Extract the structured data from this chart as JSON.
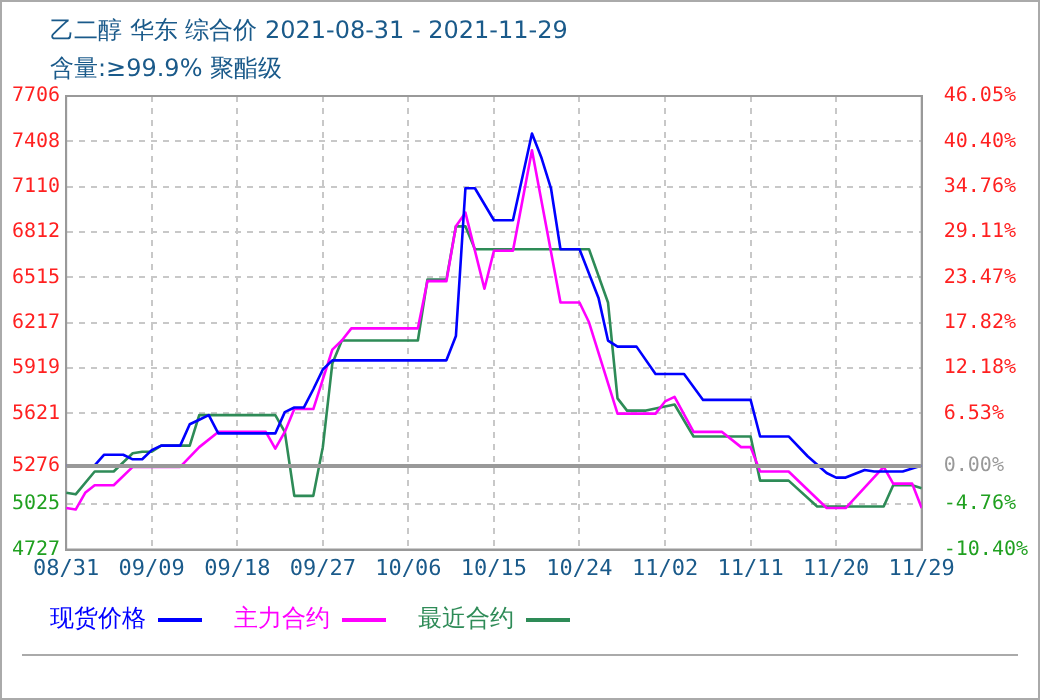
{
  "chart_data": {
    "type": "line",
    "title": "乙二醇 华东 综合价 2021-08-31 - 2021-11-29",
    "subtitle": "含量:≥99.9% 聚酯级",
    "xlim": [
      "2021-08-31",
      "2021-11-29"
    ],
    "xticks": [
      {
        "value": "2021-08-31",
        "label": "08/31"
      },
      {
        "value": "2021-09-09",
        "label": "09/09"
      },
      {
        "value": "2021-09-18",
        "label": "09/18"
      },
      {
        "value": "2021-09-27",
        "label": "09/27"
      },
      {
        "value": "2021-10-06",
        "label": "10/06"
      },
      {
        "value": "2021-10-15",
        "label": "10/15"
      },
      {
        "value": "2021-10-24",
        "label": "10/24"
      },
      {
        "value": "2021-11-02",
        "label": "11/02"
      },
      {
        "value": "2021-11-11",
        "label": "11/11"
      },
      {
        "value": "2021-11-20",
        "label": "11/20"
      },
      {
        "value": "2021-11-29",
        "label": "11/29"
      }
    ],
    "ylim": [
      4727,
      7706
    ],
    "yticks": [
      4727,
      5025,
      5276,
      5621,
      5919,
      6217,
      6515,
      6812,
      7110,
      7408,
      7706
    ],
    "y2lim": [
      -10.4,
      46.05
    ],
    "y2ticks": [
      {
        "value": -10.4,
        "label": "-10.40%"
      },
      {
        "value": -4.76,
        "label": "-4.76%"
      },
      {
        "value": 0,
        "label": "0.00%"
      },
      {
        "value": 6.53,
        "label": "6.53%"
      },
      {
        "value": 12.18,
        "label": "12.18%"
      },
      {
        "value": 17.82,
        "label": "17.82%"
      },
      {
        "value": 23.47,
        "label": "23.47%"
      },
      {
        "value": 29.11,
        "label": "29.11%"
      },
      {
        "value": 34.76,
        "label": "34.76%"
      },
      {
        "value": 40.4,
        "label": "40.40%"
      },
      {
        "value": 46.05,
        "label": "46.05%"
      }
    ],
    "ref_lines": [
      {
        "axis": "y2",
        "value": 0,
        "color": "#999999"
      }
    ],
    "grid": true,
    "legend": "bottom",
    "marker": "none",
    "line_style": "solid",
    "series": [
      {
        "name": "现货价格",
        "color": "#0000ff",
        "x": [
          "2021-08-31",
          "2021-09-03",
          "2021-09-04",
          "2021-09-06",
          "2021-09-07",
          "2021-09-08",
          "2021-09-09",
          "2021-09-10",
          "2021-09-12",
          "2021-09-13",
          "2021-09-14",
          "2021-09-15",
          "2021-09-16",
          "2021-09-22",
          "2021-09-23",
          "2021-09-24",
          "2021-09-25",
          "2021-09-26",
          "2021-09-27",
          "2021-09-28",
          "2021-10-10",
          "2021-10-11",
          "2021-10-12",
          "2021-10-13",
          "2021-10-15",
          "2021-10-17",
          "2021-10-19",
          "2021-10-20",
          "2021-10-21",
          "2021-10-22",
          "2021-10-24",
          "2021-10-26",
          "2021-10-27",
          "2021-10-28",
          "2021-10-30",
          "2021-11-01",
          "2021-11-04",
          "2021-11-06",
          "2021-11-11",
          "2021-11-12",
          "2021-11-15",
          "2021-11-17",
          "2021-11-19",
          "2021-11-20",
          "2021-11-21",
          "2021-11-23",
          "2021-11-24",
          "2021-11-27",
          "2021-11-29"
        ],
        "values": [
          5280,
          5280,
          5350,
          5350,
          5320,
          5320,
          5380,
          5410,
          5410,
          5550,
          5580,
          5610,
          5490,
          5490,
          5630,
          5660,
          5660,
          5780,
          5910,
          5970,
          5970,
          6130,
          7100,
          7100,
          6890,
          6890,
          7460,
          7300,
          7100,
          6700,
          6700,
          6380,
          6100,
          6060,
          6060,
          5880,
          5880,
          5710,
          5710,
          5470,
          5470,
          5340,
          5230,
          5200,
          5200,
          5250,
          5240,
          5240,
          5280
        ]
      },
      {
        "name": "主力合约",
        "color": "#ff00ff",
        "x": [
          "2021-08-31",
          "2021-09-01",
          "2021-09-02",
          "2021-09-03",
          "2021-09-05",
          "2021-09-07",
          "2021-09-12",
          "2021-09-14",
          "2021-09-16",
          "2021-09-21",
          "2021-09-22",
          "2021-09-23",
          "2021-09-24",
          "2021-09-26",
          "2021-09-28",
          "2021-09-29",
          "2021-09-30",
          "2021-10-07",
          "2021-10-08",
          "2021-10-10",
          "2021-10-11",
          "2021-10-12",
          "2021-10-14",
          "2021-10-15",
          "2021-10-17",
          "2021-10-19",
          "2021-10-22",
          "2021-10-24",
          "2021-10-25",
          "2021-10-28",
          "2021-11-01",
          "2021-11-02",
          "2021-11-03",
          "2021-11-05",
          "2021-11-08",
          "2021-11-10",
          "2021-11-11",
          "2021-11-12",
          "2021-11-15",
          "2021-11-19",
          "2021-11-21",
          "2021-11-25",
          "2021-11-26",
          "2021-11-28",
          "2021-11-29"
        ],
        "values": [
          5000,
          4990,
          5100,
          5150,
          5150,
          5270,
          5270,
          5400,
          5500,
          5500,
          5390,
          5500,
          5650,
          5650,
          6040,
          6100,
          6180,
          6180,
          6490,
          6490,
          6850,
          6940,
          6440,
          6690,
          6690,
          7350,
          6350,
          6350,
          6220,
          5620,
          5620,
          5700,
          5730,
          5500,
          5500,
          5400,
          5400,
          5240,
          5240,
          5000,
          5000,
          5270,
          5160,
          5160,
          5000
        ]
      },
      {
        "name": "最近合约",
        "color": "#2e8b57",
        "x": [
          "2021-08-31",
          "2021-09-01",
          "2021-09-03",
          "2021-09-05",
          "2021-09-07",
          "2021-09-08",
          "2021-09-09",
          "2021-09-10",
          "2021-09-13",
          "2021-09-14",
          "2021-09-22",
          "2021-09-23",
          "2021-09-24",
          "2021-09-26",
          "2021-09-27",
          "2021-09-28",
          "2021-09-29",
          "2021-10-07",
          "2021-10-08",
          "2021-10-10",
          "2021-10-11",
          "2021-10-12",
          "2021-10-13",
          "2021-10-25",
          "2021-10-27",
          "2021-10-28",
          "2021-10-29",
          "2021-10-31",
          "2021-11-03",
          "2021-11-05",
          "2021-11-11",
          "2021-11-12",
          "2021-11-15",
          "2021-11-18",
          "2021-11-25",
          "2021-11-26",
          "2021-11-28",
          "2021-11-29"
        ],
        "values": [
          5100,
          5090,
          5240,
          5240,
          5360,
          5370,
          5370,
          5410,
          5410,
          5610,
          5610,
          5500,
          5080,
          5080,
          5400,
          5950,
          6100,
          6100,
          6500,
          6500,
          6850,
          6850,
          6700,
          6700,
          6350,
          5720,
          5640,
          5640,
          5680,
          5470,
          5470,
          5180,
          5180,
          5010,
          5010,
          5150,
          5150,
          5130
        ]
      }
    ]
  }
}
